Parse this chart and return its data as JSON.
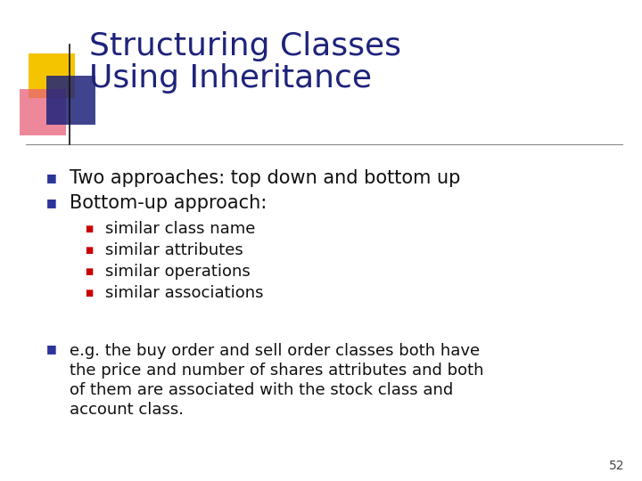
{
  "title_line1": "Structuring Classes",
  "title_line2": "Using Inheritance",
  "title_color": "#1E237A",
  "background_color": "#FFFFFF",
  "slide_number": "52",
  "bullet_main_color": "#2B3499",
  "bullet_sub_color": "#CC0000",
  "main_bullets": [
    "Two approaches: top down and bottom up",
    "Bottom-up approach:"
  ],
  "sub_bullets": [
    "similar class name",
    "similar attributes",
    "similar operations",
    "similar associations"
  ],
  "third_bullet_lines": [
    "e.g. the buy order and sell order classes both have",
    "the price and number of shares attributes and both",
    "of them are associated with the stock class and",
    "account class."
  ],
  "title_font_size": 26,
  "main_bullet_font_size": 15,
  "sub_bullet_font_size": 13,
  "third_bullet_font_size": 13,
  "figsize": [
    7.2,
    5.4
  ],
  "dpi": 100
}
